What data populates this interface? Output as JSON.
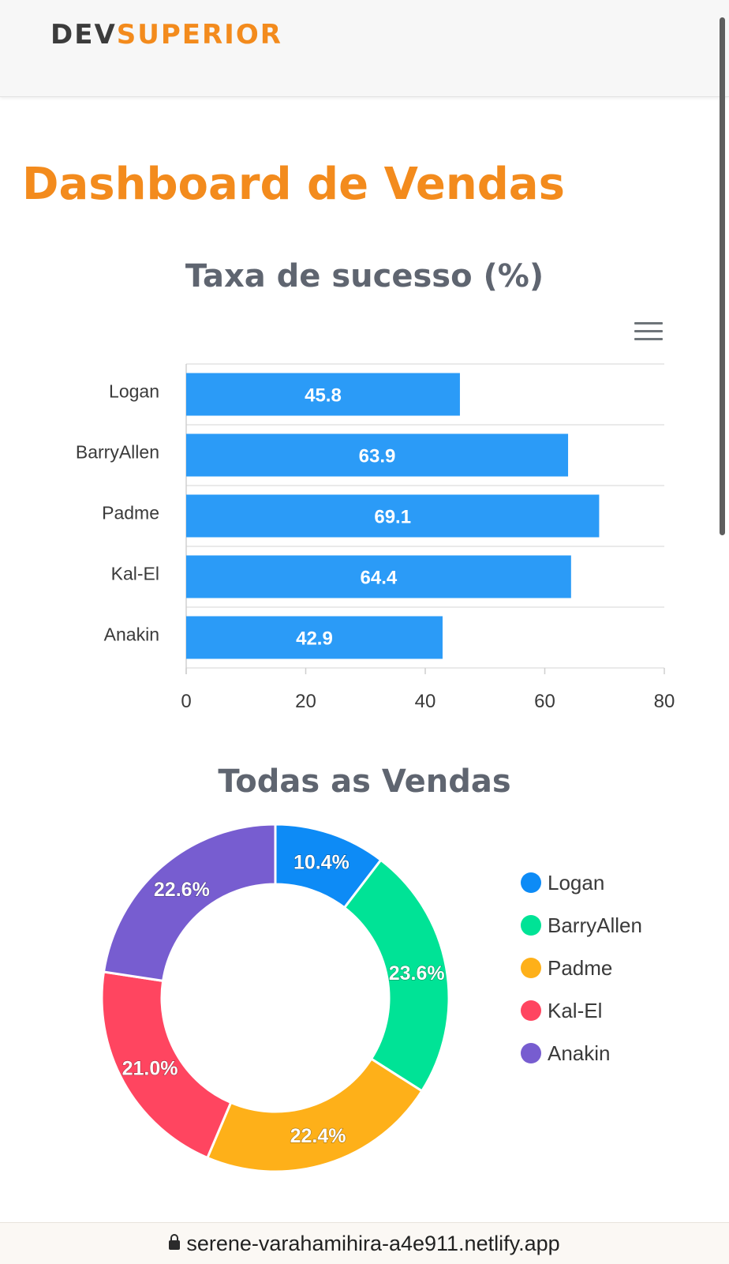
{
  "navbar": {
    "logo_part1": "DEV",
    "logo_part2": "SUPERIOR"
  },
  "page": {
    "title": "Dashboard de Vendas"
  },
  "colors": {
    "accent": "#f38b1d",
    "bar": "#2b9bf7",
    "logan": "#0d8bf6",
    "barryallen": "#00e396",
    "padme": "#feb019",
    "kalel": "#ff4560",
    "anakin": "#775dd0"
  },
  "toolbar": {
    "menu_icon": "hamburger-menu-icon"
  },
  "chart_data": [
    {
      "type": "bar",
      "orientation": "horizontal",
      "title": "Taxa de sucesso (%)",
      "categories": [
        "Logan",
        "BarryAllen",
        "Padme",
        "Kal-El",
        "Anakin"
      ],
      "values": [
        45.8,
        63.9,
        69.1,
        64.4,
        42.9
      ],
      "value_labels": [
        "45.8",
        "63.9",
        "69.1",
        "64.4",
        "42.9"
      ],
      "xlim": [
        0,
        80
      ],
      "xticks": [
        0,
        20,
        40,
        60,
        80
      ],
      "xtick_labels": [
        "0",
        "20",
        "40",
        "60",
        "80"
      ],
      "grid": true
    },
    {
      "type": "pie",
      "donut": true,
      "title": "Todas as Vendas",
      "labels": [
        "Logan",
        "BarryAllen",
        "Padme",
        "Kal-El",
        "Anakin"
      ],
      "values": [
        10.4,
        23.6,
        22.4,
        21.0,
        22.6
      ],
      "value_labels": [
        "10.4%",
        "23.6%",
        "22.4%",
        "21.0%",
        "22.6%"
      ],
      "legend_position": "right"
    }
  ],
  "legend": {
    "items": [
      {
        "label": "Logan",
        "color": "#0d8bf6"
      },
      {
        "label": "BarryAllen",
        "color": "#00e396"
      },
      {
        "label": "Padme",
        "color": "#feb019"
      },
      {
        "label": "Kal-El",
        "color": "#ff4560"
      },
      {
        "label": "Anakin",
        "color": "#775dd0"
      }
    ]
  },
  "browser": {
    "url": "serene-varahamihira-a4e911.netlify.app"
  }
}
